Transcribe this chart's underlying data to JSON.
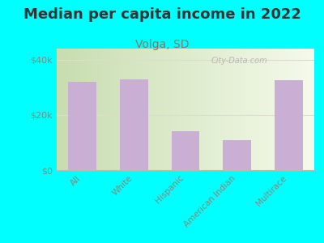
{
  "title": "Median per capita income in 2022",
  "subtitle": "Volga, SD",
  "categories": [
    "All",
    "White",
    "Hispanic",
    "American Indian",
    "Multirace"
  ],
  "values": [
    32000,
    33000,
    14000,
    11000,
    32500
  ],
  "bar_color": "#c9afd4",
  "background_outer": "#00ffff",
  "title_fontsize": 13,
  "subtitle_fontsize": 10,
  "ylabel_ticks": [
    0,
    20000,
    40000
  ],
  "ylabel_labels": [
    "$0",
    "$20k",
    "$40k"
  ],
  "ylim": [
    0,
    44000
  ],
  "watermark": "City-Data.com",
  "tick_color": "#888877",
  "title_color": "#333333",
  "subtitle_color": "#887766",
  "grid_color": "#ddddcc",
  "bg_left": "#c8ddb0",
  "bg_right": "#f0f5e0"
}
